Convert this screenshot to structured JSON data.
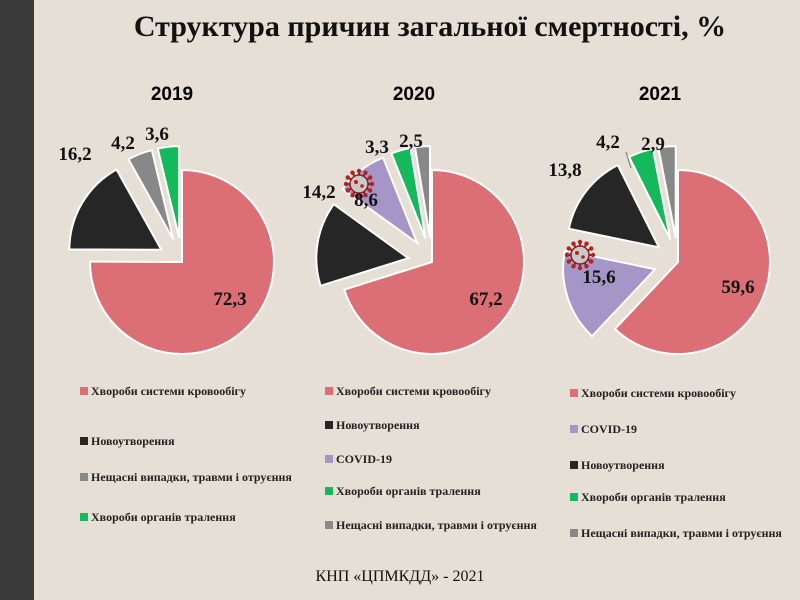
{
  "title": "Структура причин загальної смертності, %",
  "footer": "КНП «ЦПМКДД» - 2021",
  "colors": {
    "circulatory": "#dc6e76",
    "neoplasms": "#262626",
    "covid": "#a496c6",
    "digestive": "#15b85a",
    "accidents": "#888888",
    "background": "#e5dfd6"
  },
  "chart_data": [
    {
      "type": "pie",
      "title": "2019",
      "slices": [
        {
          "name": "Хвороби системи кровообігу",
          "value": 72.3,
          "label": "72,3",
          "color": "#dc6e76"
        },
        {
          "name": "Новоутворення",
          "value": 16.2,
          "label": "16,2",
          "color": "#262626"
        },
        {
          "name": "Нещасні випадки, травми і отруєння",
          "value": 4.2,
          "label": "4,2",
          "color": "#888888"
        },
        {
          "name": "Хвороби органів травлення",
          "value": 3.6,
          "label": "3,6",
          "color": "#15b85a"
        }
      ],
      "legend": [
        {
          "label": "Хвороби системи кровообігу",
          "color": "#dc6e76"
        },
        {
          "label": "Новоутворення",
          "color": "#262626"
        },
        {
          "label": "Нещасні випадки, травми і отруєння",
          "color": "#888888"
        },
        {
          "label": "Хвороби органів тралення",
          "color": "#15b85a"
        }
      ]
    },
    {
      "type": "pie",
      "title": "2020",
      "slices": [
        {
          "name": "Хвороби системи кровообігу",
          "value": 67.2,
          "label": "67,2",
          "color": "#dc6e76"
        },
        {
          "name": "Новоутворення",
          "value": 14.2,
          "label": "14,2",
          "color": "#262626"
        },
        {
          "name": "COVID-19",
          "value": 8.6,
          "label": "8,6",
          "color": "#a496c6"
        },
        {
          "name": "Хвороби органів травлення",
          "value": 3.3,
          "label": "3,3",
          "color": "#15b85a"
        },
        {
          "name": "Нещасні випадки, травми і отруєння",
          "value": 2.5,
          "label": "2,5",
          "color": "#888888"
        }
      ],
      "legend": [
        {
          "label": "Хвороби системи кровообігу",
          "color": "#dc6e76"
        },
        {
          "label": "Новоутворення",
          "color": "#262626"
        },
        {
          "label": "COVID-19",
          "color": "#a496c6"
        },
        {
          "label": "Хвороби органів тралення",
          "color": "#15b85a"
        },
        {
          "label": "Нещасні випадки, травми і отруєння",
          "color": "#888888"
        }
      ]
    },
    {
      "type": "pie",
      "title": "2021",
      "slices": [
        {
          "name": "Хвороби системи кровообігу",
          "value": 59.6,
          "label": "59,6",
          "color": "#dc6e76"
        },
        {
          "name": "COVID-19",
          "value": 15.6,
          "label": "15,6",
          "color": "#a496c6"
        },
        {
          "name": "Новоутворення",
          "value": 13.8,
          "label": "13,8",
          "color": "#262626"
        },
        {
          "name": "Хвороби органів травлення",
          "value": 4.2,
          "label": "4,2",
          "color": "#15b85a"
        },
        {
          "name": "Нещасні випадки, травми і отруєння",
          "value": 2.9,
          "label": "2,9",
          "color": "#888888"
        }
      ],
      "legend": [
        {
          "label": "Хвороби системи кровообігу",
          "color": "#dc6e76"
        },
        {
          "label": "COVID-19",
          "color": "#a496c6"
        },
        {
          "label": "Новоутворення",
          "color": "#262626"
        },
        {
          "label": "Хвороби органів тралення",
          "color": "#15b85a"
        },
        {
          "label": "Нещасні випадки, травми і отруєння",
          "color": "#888888"
        }
      ]
    }
  ]
}
